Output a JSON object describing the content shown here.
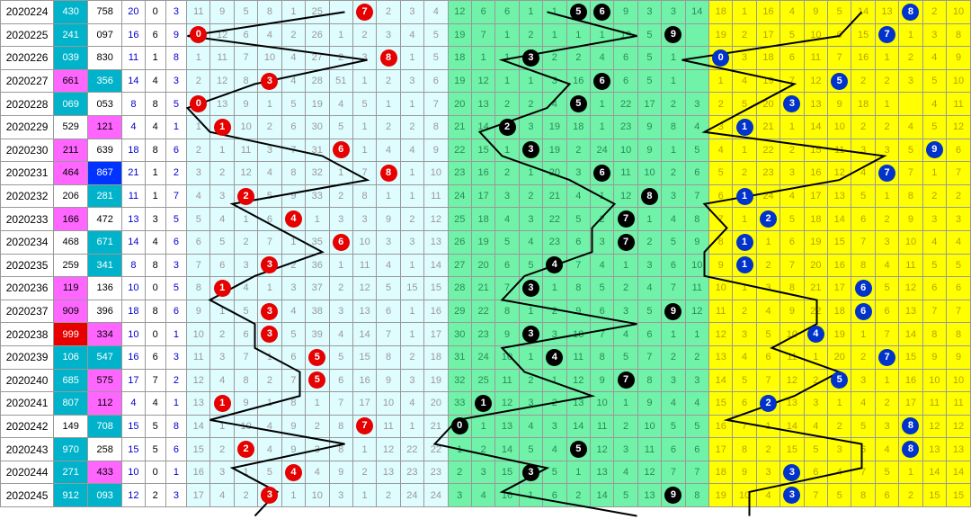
{
  "layout": {
    "rowHeight": 26.68,
    "periodW": 56,
    "num1W": 36,
    "num2W": 36,
    "s1W": 24,
    "s2W": 22,
    "s3W": 22,
    "secACount": 11,
    "secAW": 25,
    "secBCount": 11,
    "secBW": 25,
    "secCCount": 11,
    "secCW": 25,
    "colors": {
      "secA_bg": "#dffcff",
      "secA_fg": "#999",
      "secB_bg": "#70f2a8",
      "secB_fg": "#2b8a5a",
      "secC_bg": "#ffff00",
      "secC_fg": "#b8a100",
      "ballRed": "#e60000",
      "ballBlack": "#000",
      "ballBlue": "#0033cc",
      "line": "#000"
    }
  },
  "rows": [
    {
      "period": "2020224",
      "n1": "430",
      "n1c": "teal",
      "n2": "758",
      "n2c": "",
      "s1": "20",
      "s2": "0",
      "s3": "3",
      "a": [
        "11",
        "9",
        "5",
        "8",
        "1",
        "25",
        "",
        "1",
        "2",
        "3",
        "4"
      ],
      "aBall": 7,
      "b": [
        "12",
        "6",
        "6",
        "1",
        "1",
        "",
        "",
        "9",
        "3",
        "3",
        "14"
      ],
      "bBall": 5,
      "bBall2": 6,
      "c": [
        "18",
        "1",
        "16",
        "4",
        "9",
        "5",
        "14",
        "13",
        "",
        "2",
        "10"
      ],
      "cBall": 8
    },
    {
      "period": "2020225",
      "n1": "241",
      "n1c": "teal",
      "n2": "097",
      "n2c": "",
      "s1": "16",
      "s2": "6",
      "s3": "9",
      "a": [
        "",
        "12",
        "6",
        "4",
        "2",
        "26",
        "1",
        "2",
        "3",
        "4",
        "5"
      ],
      "aBall": 0,
      "b": [
        "19",
        "7",
        "1",
        "2",
        "1",
        "1",
        "1",
        "19",
        "5",
        "",
        ""
      ],
      "bBall": 9,
      "c": [
        "19",
        "2",
        "17",
        "5",
        "10",
        "6",
        "15",
        "",
        "1",
        "3",
        "8"
      ],
      "cBall": 7
    },
    {
      "period": "2020226",
      "n1": "039",
      "n1c": "teal",
      "n2": "830",
      "n2c": "",
      "s1": "11",
      "s2": "1",
      "s3": "8",
      "a": [
        "1",
        "11",
        "7",
        "10",
        "4",
        "27",
        "2",
        "3",
        "",
        "1",
        "5"
      ],
      "aBall": 8,
      "b": [
        "18",
        "1",
        "1",
        "",
        "2",
        "2",
        "4",
        "6",
        "5",
        "1",
        ""
      ],
      "bBall": 3,
      "c": [
        "",
        "3",
        "18",
        "6",
        "11",
        "7",
        "16",
        "1",
        "2",
        "4",
        "9"
      ],
      "cBall": 0
    },
    {
      "period": "2020227",
      "n1": "661",
      "n1c": "pink",
      "n2": "356",
      "n2c": "teal",
      "s1": "14",
      "s2": "4",
      "s3": "3",
      "a": [
        "2",
        "12",
        "8",
        "",
        "4",
        "28",
        "51",
        "1",
        "2",
        "3",
        "6"
      ],
      "aBall": 3,
      "b": [
        "19",
        "12",
        "1",
        "1",
        "3",
        "16",
        "",
        "6",
        "5",
        "1",
        ""
      ],
      "bBall": 6,
      "c": [
        "1",
        "4",
        "19",
        "7",
        "12",
        "",
        "2",
        "2",
        "3",
        "5",
        "10"
      ],
      "cBall": 5,
      "cBall3": 0
    },
    {
      "period": "2020228",
      "n1": "069",
      "n1c": "teal",
      "n2": "053",
      "n2c": "",
      "s1": "8",
      "s2": "8",
      "s3": "5",
      "a": [
        "",
        "13",
        "9",
        "1",
        "5",
        "19",
        "4",
        "5",
        "1",
        "1",
        "7"
      ],
      "aBall": 0,
      "b": [
        "20",
        "13",
        "2",
        "2",
        "4",
        "",
        "1",
        "22",
        "17",
        "2",
        "3"
      ],
      "bBall": 5,
      "c": [
        "2",
        "5",
        "20",
        "",
        "13",
        "9",
        "18",
        "1",
        "",
        "4",
        "11"
      ],
      "cBall": 3
    },
    {
      "period": "2020229",
      "n1": "529",
      "n1c": "",
      "n2": "121",
      "n2c": "pink",
      "s1": "4",
      "s2": "4",
      "s3": "1",
      "a": [
        "1",
        "",
        "10",
        "2",
        "6",
        "30",
        "5",
        "1",
        "2",
        "2",
        "8"
      ],
      "aBall": 1,
      "b": [
        "21",
        "14",
        "",
        "3",
        "19",
        "18",
        "1",
        "23",
        "9",
        "8",
        "4"
      ],
      "bBall": 2,
      "c": [
        "3",
        "",
        "21",
        "1",
        "14",
        "10",
        "2",
        "2",
        "4",
        "5",
        "12"
      ],
      "cBall": 1
    },
    {
      "period": "2020230",
      "n1": "211",
      "n1c": "pink",
      "n2": "639",
      "n2c": "",
      "s1": "18",
      "s2": "8",
      "s3": "6",
      "a": [
        "2",
        "1",
        "11",
        "3",
        "7",
        "31",
        "",
        "1",
        "4",
        "4",
        "9"
      ],
      "aBall": 6,
      "b": [
        "22",
        "15",
        "1",
        "",
        "19",
        "2",
        "24",
        "10",
        "9",
        "1",
        "5"
      ],
      "bBall": 3,
      "c": [
        "4",
        "1",
        "22",
        "2",
        "15",
        "11",
        "3",
        "3",
        "5",
        "",
        "6"
      ],
      "cBall": 9
    },
    {
      "period": "2020231",
      "n1": "464",
      "n1c": "pink",
      "n2": "867",
      "n2c": "blue",
      "s1": "21",
      "s2": "1",
      "s3": "2",
      "a": [
        "3",
        "2",
        "12",
        "4",
        "8",
        "32",
        "1",
        "7",
        "",
        "1",
        "10"
      ],
      "aBall": 8,
      "b": [
        "23",
        "16",
        "2",
        "1",
        "20",
        "3",
        "",
        "11",
        "10",
        "2",
        "6"
      ],
      "bBall": 6,
      "c": [
        "5",
        "2",
        "23",
        "3",
        "16",
        "12",
        "4",
        "",
        "7",
        "1",
        "7"
      ],
      "cBall": 7
    },
    {
      "period": "2020232",
      "n1": "206",
      "n1c": "",
      "n2": "281",
      "n2c": "teal",
      "s1": "11",
      "s2": "1",
      "s3": "7",
      "a": [
        "4",
        "3",
        "",
        "5",
        "9",
        "33",
        "2",
        "8",
        "1",
        "1",
        "11"
      ],
      "aBall": 2,
      "b": [
        "24",
        "17",
        "3",
        "2",
        "21",
        "4",
        "1",
        "12",
        "",
        "3",
        "7"
      ],
      "bBall": 8,
      "c": [
        "6",
        "",
        "24",
        "4",
        "17",
        "13",
        "5",
        "1",
        "8",
        "2",
        "2"
      ],
      "cBall": 1
    },
    {
      "period": "2020233",
      "n1": "166",
      "n1c": "pink",
      "n2": "472",
      "n2c": "",
      "s1": "13",
      "s2": "3",
      "s3": "5",
      "a": [
        "5",
        "4",
        "1",
        "6",
        "",
        "1",
        "3",
        "3",
        "9",
        "2",
        "12"
      ],
      "aBall": 4,
      "b": [
        "25",
        "18",
        "4",
        "3",
        "22",
        "5",
        "2",
        "",
        "1",
        "4",
        "8"
      ],
      "bBall": 7,
      "c": [
        "7",
        "1",
        "",
        "5",
        "18",
        "14",
        "6",
        "2",
        "9",
        "3",
        "3"
      ],
      "cBall": 2
    },
    {
      "period": "2020234",
      "n1": "468",
      "n1c": "",
      "n2": "671",
      "n2c": "teal",
      "s1": "14",
      "s2": "4",
      "s3": "6",
      "a": [
        "6",
        "5",
        "2",
        "7",
        "1",
        "35",
        "",
        "10",
        "3",
        "3",
        "13"
      ],
      "aBall": 6,
      "b": [
        "26",
        "19",
        "5",
        "4",
        "23",
        "6",
        "3",
        "",
        "2",
        "5",
        "9"
      ],
      "bBall": 7,
      "c": [
        "8",
        "",
        "1",
        "6",
        "19",
        "15",
        "7",
        "3",
        "10",
        "4",
        "4"
      ],
      "cBall": 1
    },
    {
      "period": "2020235",
      "n1": "259",
      "n1c": "",
      "n2": "341",
      "n2c": "teal",
      "s1": "8",
      "s2": "8",
      "s3": "3",
      "a": [
        "7",
        "6",
        "3",
        "",
        "2",
        "36",
        "1",
        "11",
        "4",
        "1",
        "14"
      ],
      "aBall": 3,
      "b": [
        "27",
        "20",
        "6",
        "5",
        "",
        "7",
        "4",
        "1",
        "3",
        "6",
        "10"
      ],
      "bBall": 4,
      "c": [
        "9",
        "",
        "2",
        "7",
        "20",
        "16",
        "8",
        "4",
        "11",
        "5",
        "5"
      ],
      "cBall": 1
    },
    {
      "period": "2020236",
      "n1": "119",
      "n1c": "pink",
      "n2": "136",
      "n2c": "",
      "s1": "10",
      "s2": "0",
      "s3": "5",
      "a": [
        "8",
        "",
        "4",
        "1",
        "3",
        "37",
        "2",
        "12",
        "5",
        "15",
        "15"
      ],
      "aBall": 1,
      "b": [
        "28",
        "21",
        "7",
        "",
        "1",
        "8",
        "5",
        "2",
        "4",
        "7",
        "11"
      ],
      "bBall": 3,
      "c": [
        "10",
        "1",
        "3",
        "8",
        "21",
        "17",
        "",
        "5",
        "12",
        "6",
        "6"
      ],
      "cBall": 6
    },
    {
      "period": "2020237",
      "n1": "909",
      "n1c": "pink",
      "n2": "396",
      "n2c": "",
      "s1": "18",
      "s2": "8",
      "s3": "6",
      "a": [
        "9",
        "1",
        "5",
        "",
        "4",
        "38",
        "3",
        "13",
        "6",
        "1",
        "16"
      ],
      "aBall": 3,
      "b": [
        "29",
        "22",
        "8",
        "1",
        "2",
        "9",
        "6",
        "3",
        "5",
        "",
        "12"
      ],
      "bBall": 9,
      "c": [
        "11",
        "2",
        "4",
        "9",
        "22",
        "18",
        "",
        "6",
        "13",
        "7",
        "7"
      ],
      "cBall": 6
    },
    {
      "period": "2020238",
      "n1": "999",
      "n1c": "red",
      "n2": "334",
      "n2c": "pink",
      "s1": "10",
      "s2": "0",
      "s3": "1",
      "a": [
        "10",
        "2",
        "6",
        "",
        "5",
        "39",
        "4",
        "14",
        "7",
        "1",
        "17"
      ],
      "aBall": 3,
      "b": [
        "30",
        "23",
        "9",
        "",
        "3",
        "10",
        "7",
        "4",
        "6",
        "1",
        "1"
      ],
      "bBall": 3,
      "c": [
        "12",
        "3",
        "5",
        "10",
        "",
        "19",
        "1",
        "7",
        "14",
        "8",
        "8"
      ],
      "cBall": 4
    },
    {
      "period": "2020239",
      "n1": "106",
      "n1c": "teal",
      "n2": "547",
      "n2c": "teal",
      "s1": "16",
      "s2": "6",
      "s3": "3",
      "a": [
        "11",
        "3",
        "7",
        "1",
        "6",
        "",
        "5",
        "15",
        "8",
        "2",
        "18"
      ],
      "aBall": 5,
      "b": [
        "31",
        "24",
        "10",
        "1",
        "",
        "11",
        "8",
        "5",
        "7",
        "2",
        "2"
      ],
      "bBall": 4,
      "c": [
        "13",
        "4",
        "6",
        "11",
        "1",
        "20",
        "2",
        "",
        "15",
        "9",
        "9"
      ],
      "cBall": 7
    },
    {
      "period": "2020240",
      "n1": "685",
      "n1c": "teal",
      "n2": "575",
      "n2c": "pink",
      "s1": "17",
      "s2": "7",
      "s3": "2",
      "a": [
        "12",
        "4",
        "8",
        "2",
        "7",
        "",
        "6",
        "16",
        "9",
        "3",
        "19"
      ],
      "aBall": 5,
      "b": [
        "32",
        "25",
        "11",
        "2",
        "1",
        "12",
        "9",
        "",
        "8",
        "3",
        "3"
      ],
      "bBall": 7,
      "c": [
        "14",
        "5",
        "7",
        "12",
        "2",
        "",
        "3",
        "1",
        "16",
        "10",
        "10"
      ],
      "cBall": 5
    },
    {
      "period": "2020241",
      "n1": "807",
      "n1c": "teal",
      "n2": "112",
      "n2c": "pink",
      "s1": "4",
      "s2": "4",
      "s3": "1",
      "a": [
        "13",
        "",
        "9",
        "1",
        "8",
        "1",
        "7",
        "17",
        "10",
        "4",
        "20"
      ],
      "aBall": 1,
      "b": [
        "33",
        "",
        "12",
        "3",
        "2",
        "13",
        "10",
        "1",
        "9",
        "4",
        "4"
      ],
      "bBall": 1,
      "c": [
        "15",
        "6",
        "",
        "13",
        "3",
        "1",
        "4",
        "2",
        "17",
        "11",
        "11"
      ],
      "cBall": 2
    },
    {
      "period": "2020242",
      "n1": "149",
      "n1c": "",
      "n2": "708",
      "n2c": "teal",
      "s1": "15",
      "s2": "5",
      "s3": "8",
      "a": [
        "14",
        "1",
        "10",
        "4",
        "9",
        "2",
        "8",
        "",
        "11",
        "1",
        "21"
      ],
      "aBall": 7,
      "b": [
        "",
        "1",
        "13",
        "4",
        "3",
        "14",
        "11",
        "2",
        "10",
        "5",
        "5"
      ],
      "bBall": 0,
      "c": [
        "16",
        "7",
        "1",
        "14",
        "4",
        "2",
        "5",
        "3",
        "",
        "12",
        "12"
      ],
      "cBall": 8
    },
    {
      "period": "2020243",
      "n1": "970",
      "n1c": "teal",
      "n2": "258",
      "n2c": "",
      "s1": "15",
      "s2": "5",
      "s3": "6",
      "a": [
        "15",
        "2",
        "",
        "4",
        "9",
        "3",
        "8",
        "1",
        "12",
        "22",
        "22"
      ],
      "aBall": 2,
      "b": [
        "1",
        "2",
        "14",
        "5",
        "4",
        "",
        "12",
        "3",
        "11",
        "6",
        "6"
      ],
      "bBall": 5,
      "c": [
        "17",
        "8",
        "2",
        "15",
        "5",
        "3",
        "6",
        "4",
        "",
        "13",
        "13"
      ],
      "cBall": 8
    },
    {
      "period": "2020244",
      "n1": "271",
      "n1c": "teal",
      "n2": "433",
      "n2c": "pink",
      "s1": "10",
      "s2": "0",
      "s3": "1",
      "a": [
        "16",
        "3",
        "1",
        "5",
        "",
        "4",
        "9",
        "2",
        "13",
        "23",
        "23"
      ],
      "aBall": 4,
      "b": [
        "2",
        "3",
        "15",
        "",
        "5",
        "1",
        "13",
        "4",
        "12",
        "7",
        "7"
      ],
      "bBall": 3,
      "c": [
        "18",
        "9",
        "3",
        "",
        "6",
        "4",
        "7",
        "5",
        "1",
        "14",
        "14"
      ],
      "cBall": 3
    },
    {
      "period": "2020245",
      "n1": "912",
      "n1c": "teal",
      "n2": "093",
      "n2c": "teal",
      "s1": "12",
      "s2": "2",
      "s3": "3",
      "a": [
        "17",
        "4",
        "2",
        "",
        "1",
        "10",
        "3",
        "1",
        "2",
        "24",
        "24"
      ],
      "aBall": 3,
      "b": [
        "3",
        "4",
        "16",
        "1",
        "6",
        "2",
        "14",
        "5",
        "13",
        "",
        "8"
      ],
      "bBall": 9,
      "c": [
        "19",
        "10",
        "4",
        "",
        "7",
        "5",
        "8",
        "6",
        "2",
        "15",
        "15"
      ],
      "cBall": 3
    }
  ]
}
